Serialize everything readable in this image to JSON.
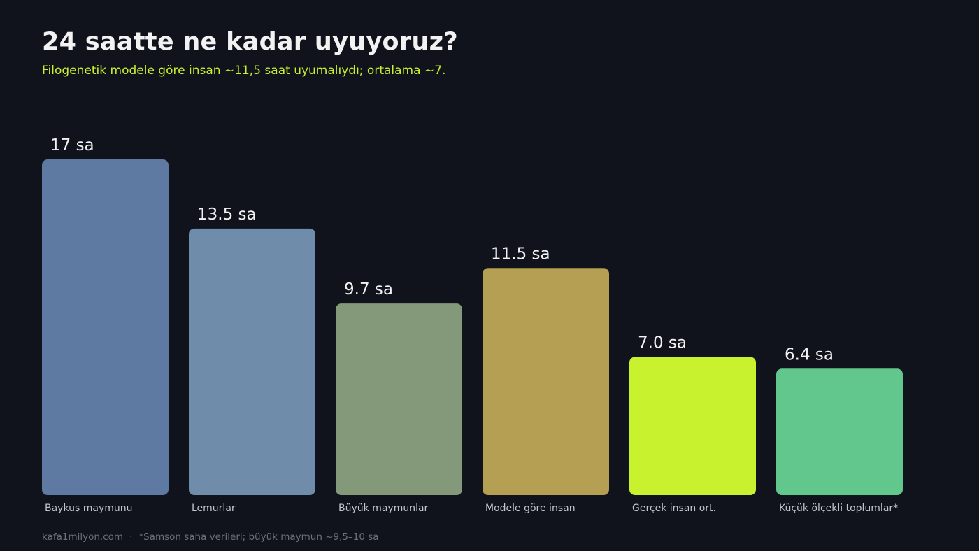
{
  "header": {
    "title": "24 saatte ne kadar uyuyoruz?",
    "subtitle": "Filogenetik modele göre insan ~11,5 saat uyumalıydı; ortalama ~7."
  },
  "footer": {
    "site": "kafa1milyon.com",
    "separator": "·",
    "note": "*Samson saha verileri; büyük maymun ~9,5–10 sa"
  },
  "chart_data": {
    "type": "bar",
    "title": "24 saatte ne kadar uyuyoruz?",
    "subtitle": "Filogenetik modele göre insan ~11,5 saat uyumalıydı; ortalama ~7.",
    "categories": [
      "Baykuş maymunu",
      "Lemurlar",
      "Büyük maymunlar",
      "Modele göre insan",
      "Gerçek insan ort.",
      "Küçük ölçekli toplumlar*"
    ],
    "values": [
      17,
      13.5,
      9.7,
      11.5,
      7.0,
      6.4
    ],
    "value_labels": [
      "17 sa",
      "13.5 sa",
      "9.7 sa",
      "11.5 sa",
      "7.0 sa",
      "6.4 sa"
    ],
    "colors": [
      "#5e79a2",
      "#6f8daa",
      "#83997a",
      "#b59f53",
      "#c9f22e",
      "#62c78d"
    ],
    "unit": "sa",
    "ylim": [
      0,
      17
    ],
    "grid": false,
    "legend": "none"
  }
}
